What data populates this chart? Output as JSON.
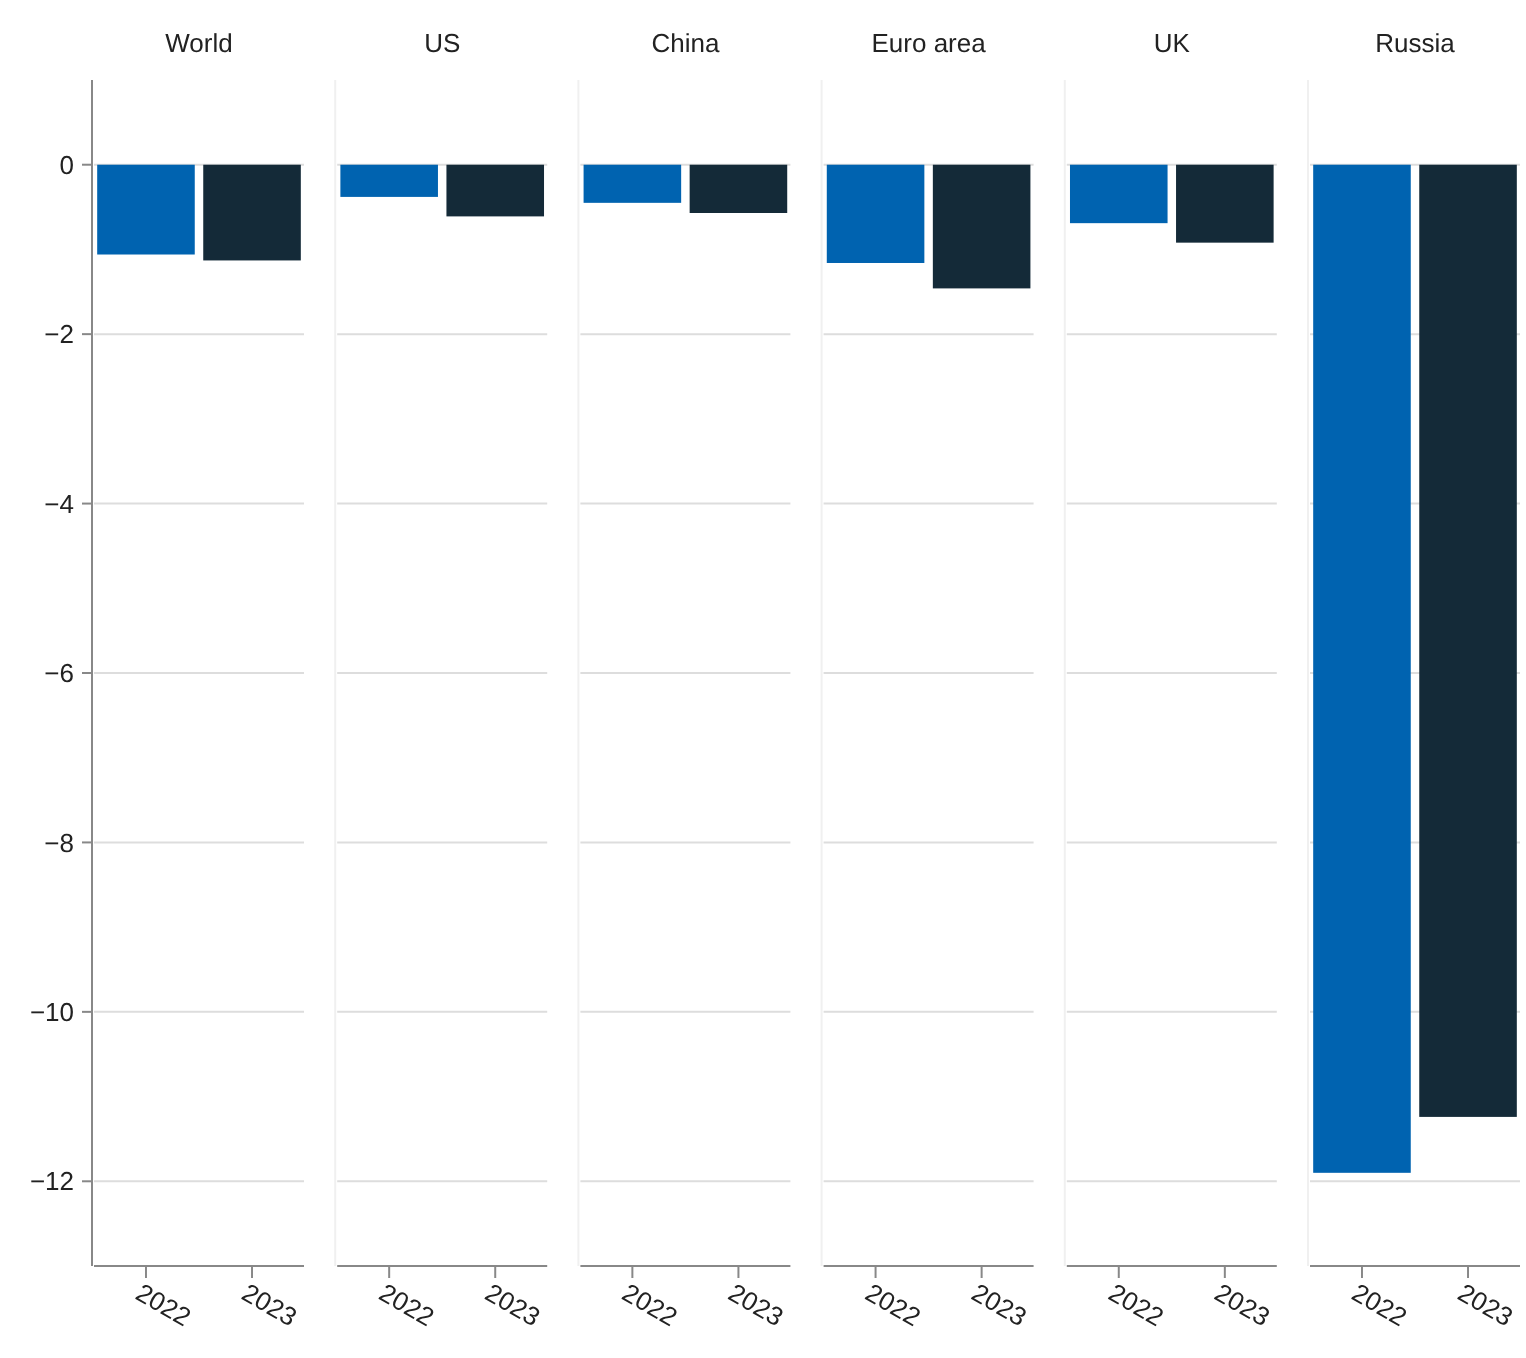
{
  "chart_data": [
    {
      "type": "bar",
      "title": "World",
      "categories": [
        "2022",
        "2023"
      ],
      "values": [
        -1.06,
        -1.13
      ],
      "colors": [
        "#0063b0",
        "#142a38"
      ],
      "ylim": [
        -13,
        1
      ],
      "yticks": [
        0,
        -2,
        -4,
        -6,
        -8,
        -10,
        -12
      ],
      "grid": "y"
    },
    {
      "type": "bar",
      "title": "US",
      "categories": [
        "2022",
        "2023"
      ],
      "values": [
        -0.38,
        -0.61
      ],
      "colors": [
        "#0063b0",
        "#142a38"
      ],
      "ylim": [
        -13,
        1
      ],
      "yticks": [
        0,
        -2,
        -4,
        -6,
        -8,
        -10,
        -12
      ],
      "grid": "y",
      "tick_labels": "x"
    },
    {
      "type": "bar",
      "title": "China",
      "categories": [
        "2022",
        "2023"
      ],
      "values": [
        -0.45,
        -0.57
      ],
      "colors": [
        "#0063b0",
        "#142a38"
      ],
      "ylim": [
        -13,
        1
      ],
      "yticks": [
        0,
        -2,
        -4,
        -6,
        -8,
        -10,
        -12
      ],
      "grid": "y",
      "tick_labels": "x"
    },
    {
      "type": "bar",
      "title": "Euro area",
      "categories": [
        "2022",
        "2023"
      ],
      "values": [
        -1.16,
        -1.46
      ],
      "colors": [
        "#0063b0",
        "#142a38"
      ],
      "ylim": [
        -13,
        1
      ],
      "yticks": [
        0,
        -2,
        -4,
        -6,
        -8,
        -10,
        -12
      ],
      "grid": "y",
      "tick_labels": "x"
    },
    {
      "type": "bar",
      "title": "UK",
      "categories": [
        "2022",
        "2023"
      ],
      "values": [
        -0.69,
        -0.92
      ],
      "colors": [
        "#0063b0",
        "#142a38"
      ],
      "ylim": [
        -13,
        1
      ],
      "yticks": [
        0,
        -2,
        -4,
        -6,
        -8,
        -10,
        -12
      ],
      "grid": "y",
      "tick_labels": "x"
    },
    {
      "type": "bar",
      "title": "Russia",
      "categories": [
        "2022",
        "2023"
      ],
      "values": [
        -11.9,
        -11.24
      ],
      "colors": [
        "#0063b0",
        "#142a38"
      ],
      "ylim": [
        -13,
        1
      ],
      "yticks": [
        0,
        -2,
        -4,
        -6,
        -8,
        -10,
        -12
      ],
      "grid": "y",
      "tick_labels": "x"
    }
  ]
}
